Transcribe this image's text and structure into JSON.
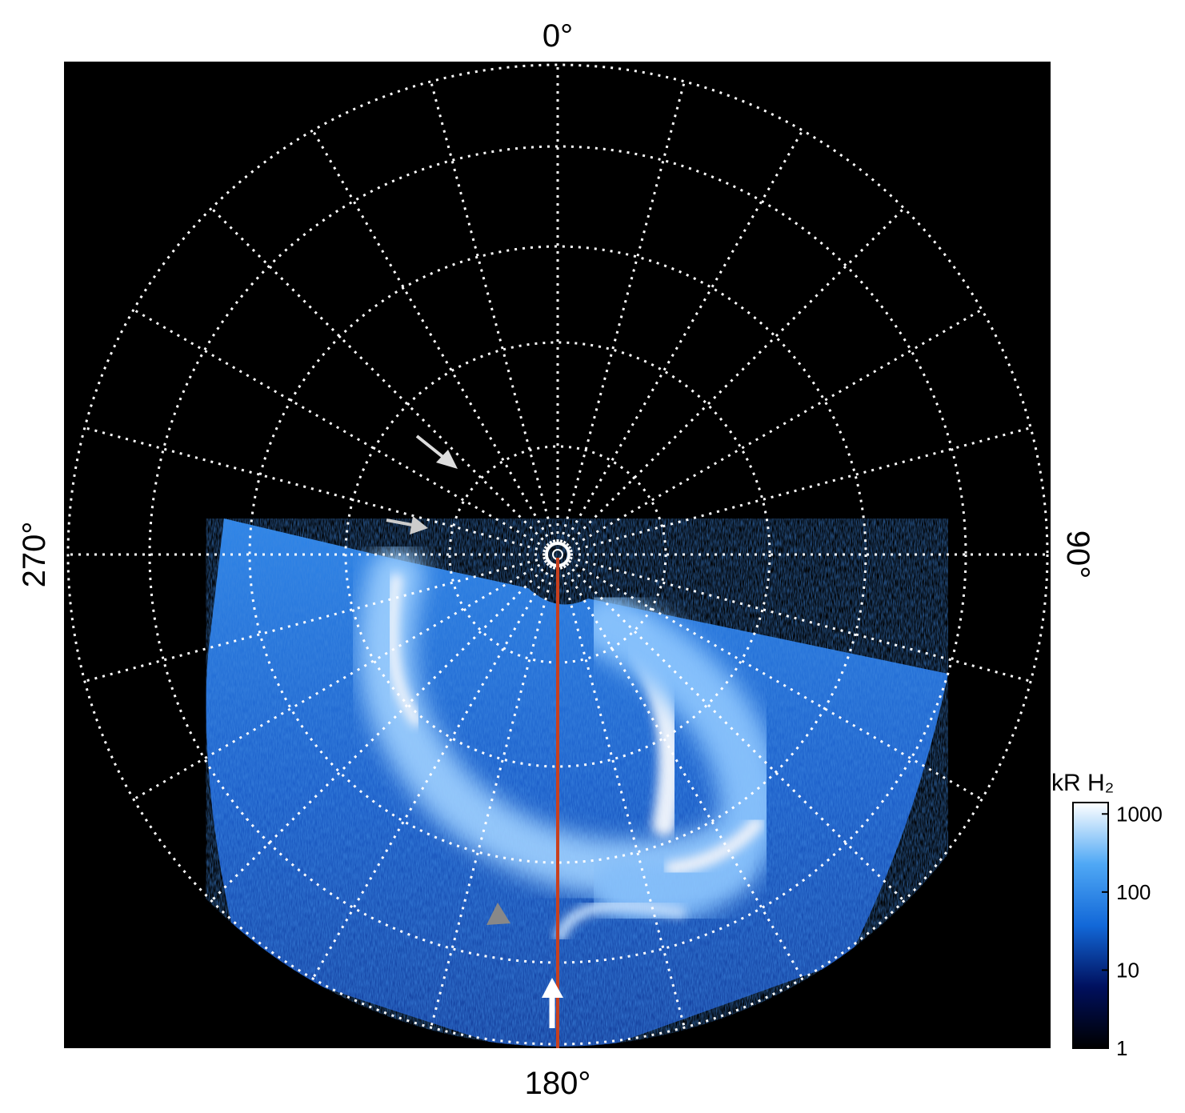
{
  "chart_data": {
    "type": "polar-image",
    "angle_labels": [
      {
        "value": 0,
        "label": "0°"
      },
      {
        "value": 90,
        "label": "90°"
      },
      {
        "value": 180,
        "label": "180°"
      },
      {
        "value": 270,
        "label": "270°"
      }
    ],
    "colorbar": {
      "title": "kR H₂",
      "log_scale": true,
      "ylim": [
        1,
        1400
      ],
      "yticks": [
        1,
        10,
        100,
        1000
      ],
      "colors": [
        "#000000",
        "#00105e",
        "#1268d8",
        "#4fa8f5",
        "#ffffff"
      ]
    }
  }
}
